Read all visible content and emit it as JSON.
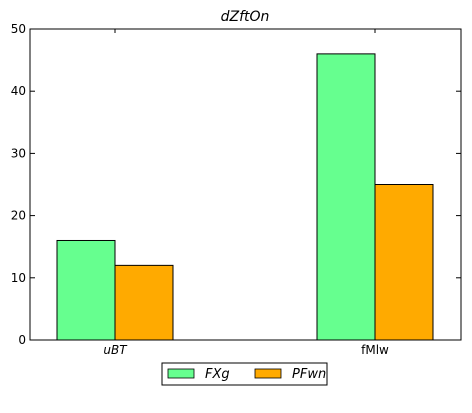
{
  "chart_data": {
    "type": "bar",
    "title": "dZftOn",
    "categories": [
      "uBT",
      "fMlw"
    ],
    "series": [
      {
        "name": "FXg",
        "values": [
          16,
          46
        ],
        "color": "#66ff8f"
      },
      {
        "name": "PFwn",
        "values": [
          12,
          25
        ],
        "color": "#ffaa00"
      }
    ],
    "ylim": [
      0,
      50
    ],
    "yticks": [
      0,
      10,
      20,
      30,
      40,
      50
    ],
    "grid": false,
    "legend": "bottom-center"
  }
}
